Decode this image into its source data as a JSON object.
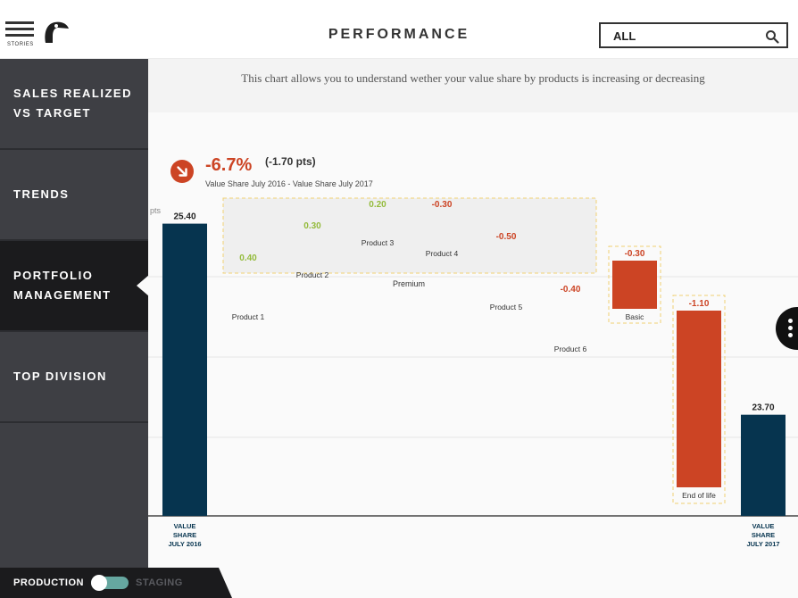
{
  "header": {
    "menu_label": "STORIES",
    "title": "PERFORMANCE",
    "filter_value": "ALL"
  },
  "sidebar": {
    "items": [
      {
        "label_line1": "SALES REALIZED",
        "label_line2": "VS TARGET",
        "active": false
      },
      {
        "label_line1": "TRENDS",
        "label_line2": "",
        "active": false
      },
      {
        "label_line1": "PORTFOLIO",
        "label_line2": "MANAGEMENT",
        "active": true
      },
      {
        "label_line1": "TOP DIVISION",
        "label_line2": "",
        "active": false
      }
    ]
  },
  "footer": {
    "production": "PRODUCTION",
    "staging": "STAGING"
  },
  "description": "This chart allows you to understand wether your value share by products is increasing or decreasing",
  "kpi": {
    "value": "-6.7%",
    "pts": "(-1.70 pts)",
    "subtitle": "Value Share July 2016 - Value Share July 2017",
    "trend": "down"
  },
  "colors": {
    "total_bar": "#06344f",
    "negative": "#cc4424",
    "positive": "#94bb3c",
    "sidebar": "#3e3f44",
    "sidebar_active": "#1b1b1d"
  },
  "chart_data": {
    "type": "bar",
    "subtype": "waterfall",
    "ylabel": "pts",
    "ylim": [
      22.8,
      25.5
    ],
    "grid": true,
    "start": {
      "label": "VALUE SHARE JULY 2016",
      "value": 25.4,
      "value_label": "25.40"
    },
    "end": {
      "label": "VALUE SHARE JULY 2017",
      "value": 23.7,
      "value_label": "23.70"
    },
    "groups": [
      {
        "name": "Premium",
        "items": [
          {
            "name": "Product 1",
            "delta": 0.4,
            "label": "0.40"
          },
          {
            "name": "Product 2",
            "delta": 0.3,
            "label": "0.30"
          },
          {
            "name": "Product 3",
            "delta": 0.2,
            "label": "0.20"
          },
          {
            "name": "Product 4",
            "delta": -0.3,
            "label": "-0.30"
          },
          {
            "name": "Product 5",
            "delta": -0.5,
            "label": "-0.50"
          },
          {
            "name": "Product 6",
            "delta": -0.4,
            "label": "-0.40"
          }
        ]
      },
      {
        "name": "Basic",
        "items": [
          {
            "name": "Basic",
            "delta": -0.3,
            "label": "-0.30"
          }
        ]
      },
      {
        "name": "End of life",
        "items": [
          {
            "name": "End of life",
            "delta": -1.1,
            "label": "-1.10"
          }
        ]
      }
    ]
  }
}
